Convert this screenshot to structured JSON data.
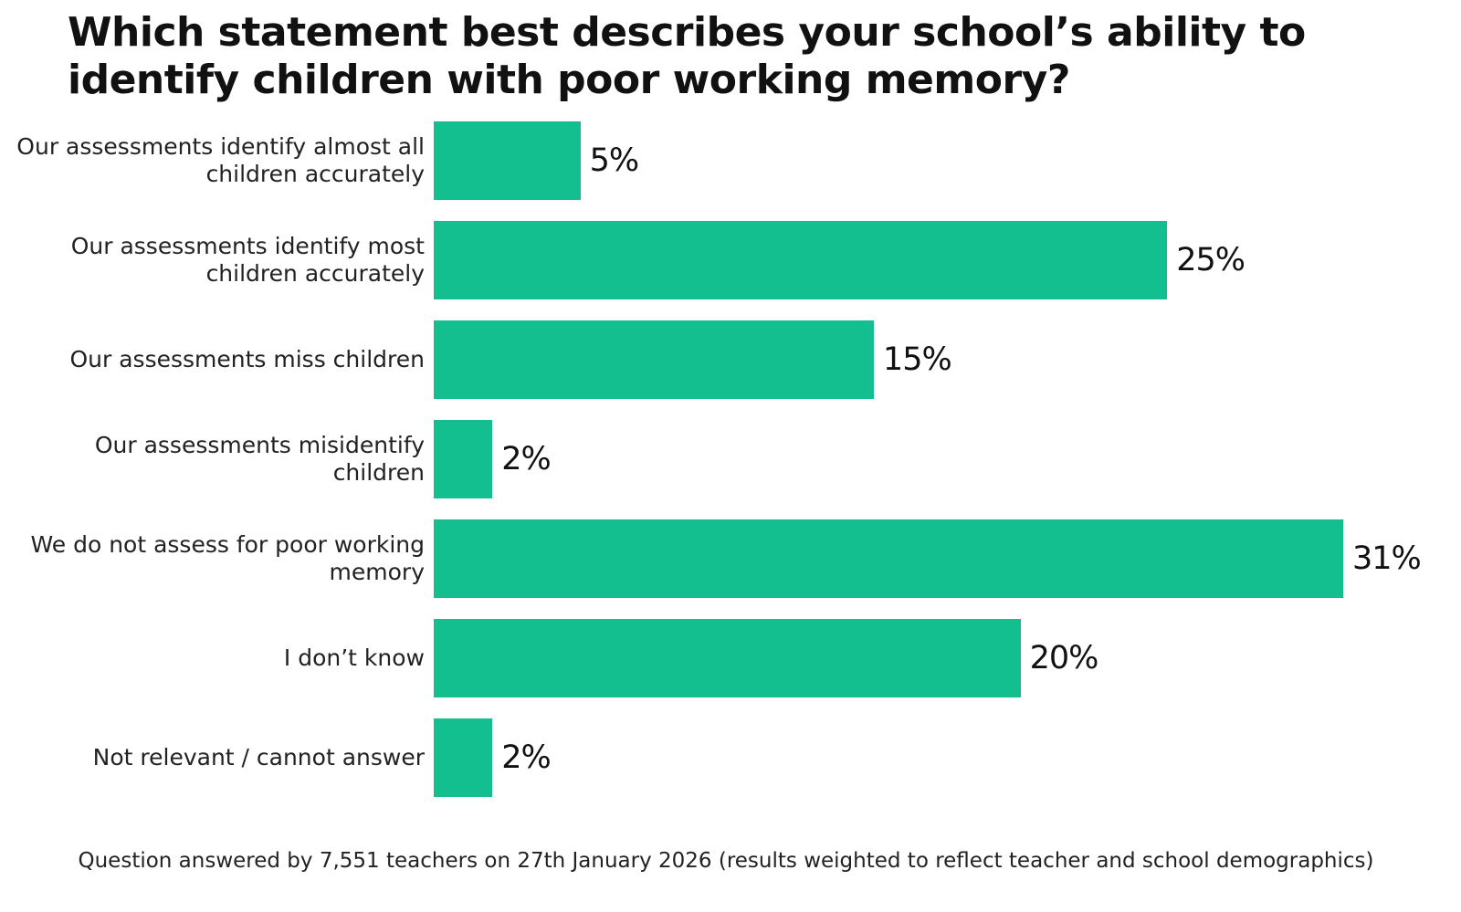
{
  "chart_data": {
    "type": "bar",
    "orientation": "horizontal",
    "title": "Which statement best describes your school’s ability to identify children with poor working memory?",
    "categories": [
      "Our assessments identify almost all children accurately",
      "Our assessments identify most children accurately",
      "Our assessments miss children",
      "Our assessments misidentify children",
      "We do not assess for poor working memory",
      "I don’t know",
      "Not relevant / cannot answer"
    ],
    "values": [
      5,
      25,
      15,
      2,
      31,
      20,
      2
    ],
    "value_labels": [
      "5%",
      "25%",
      "15%",
      "2%",
      "31%",
      "20%",
      "2%"
    ],
    "color": "#14bf8f",
    "footnote": "Question answered by 7,551 teachers on 27th January 2026 (results weighted to reflect teacher and school demographics)"
  }
}
